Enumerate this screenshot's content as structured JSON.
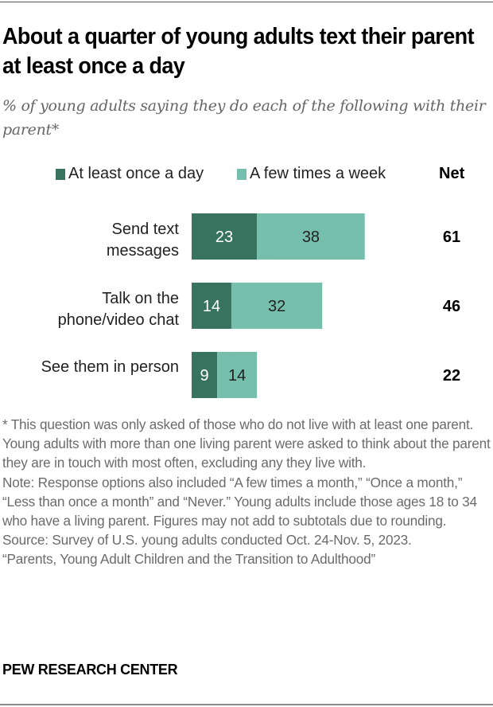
{
  "title": "About a quarter of young adults text their parent at least once a day",
  "subtitle": "% of young adults saying they do each of the following with their parent*",
  "colors": {
    "daily": "#37735f",
    "weekly": "#76bfad",
    "daily_label": "#ffffff",
    "weekly_label": "#222222"
  },
  "legend": {
    "daily": "At least once a day",
    "weekly": "A few times a week",
    "net": "Net"
  },
  "chart_data": {
    "type": "bar",
    "orientation": "horizontal",
    "stacked": true,
    "title": "About a quarter of young adults text their parent at least once a day",
    "subtitle": "% of young adults saying they do each of the following with their parent*",
    "categories": [
      [
        "Send text",
        "messages"
      ],
      [
        "Talk on the",
        "phone/video chat"
      ],
      [
        "See them in person"
      ]
    ],
    "series": [
      {
        "name": "At least once a day",
        "values": [
          23,
          14,
          9
        ]
      },
      {
        "name": "A few times a week",
        "values": [
          38,
          32,
          14
        ]
      }
    ],
    "net": {
      "label": "Net",
      "values": [
        61,
        46,
        22
      ]
    },
    "xlim": [
      0,
      100
    ],
    "grid": false,
    "legend_position": "top"
  },
  "notes": [
    "* This question was only asked of those who do not live with at least one parent. Young adults with more than one living parent were asked to think about the parent they are in touch with most often, excluding any they live with.",
    "Note: Response options also included “A few times a month,” “Once a month,” “Less than once a month” and “Never.” Young adults include those ages 18 to 34 who have a living parent. Figures may not add to subtotals due to rounding.",
    "Source: Survey of U.S. young adults conducted Oct. 24-Nov. 5, 2023.",
    "“Parents, Young Adult Children and the Transition to Adulthood”"
  ],
  "brand": "PEW RESEARCH CENTER"
}
